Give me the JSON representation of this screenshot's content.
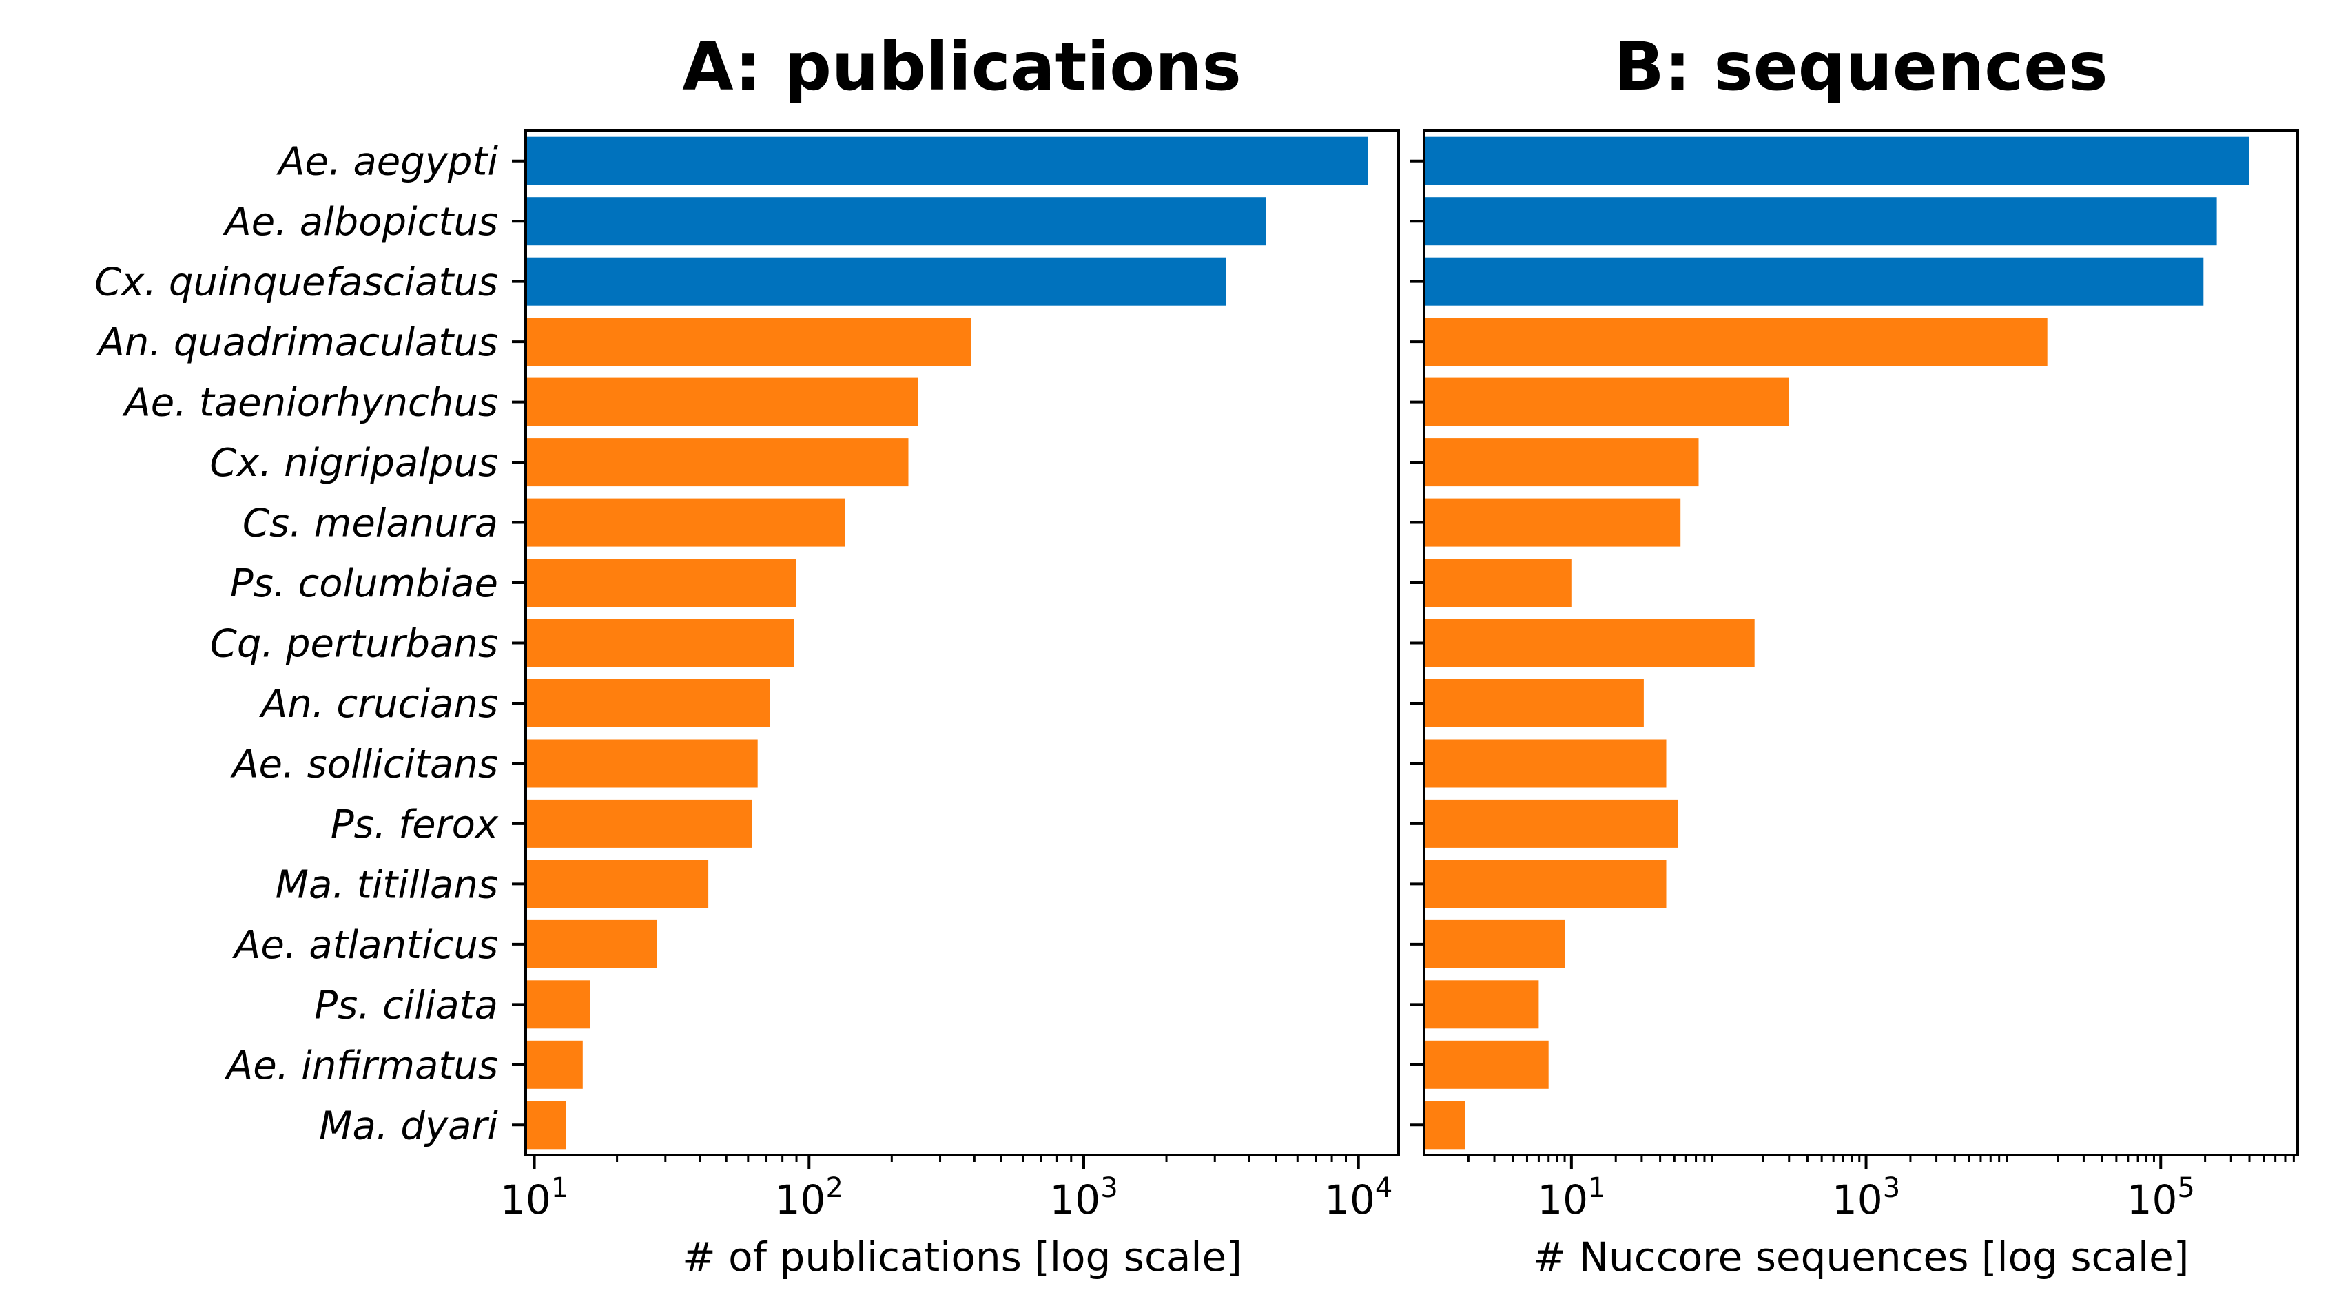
{
  "chart_data": [
    {
      "type": "bar",
      "orientation": "horizontal",
      "title": "A: publications",
      "xlabel": "# of publications [log scale]",
      "ylabel": "",
      "xscale": "log",
      "xlim": [
        9.3,
        14000
      ],
      "xticks": [
        {
          "value": 10,
          "base": "10",
          "exp": "1"
        },
        {
          "value": 100,
          "base": "10",
          "exp": "2"
        },
        {
          "value": 1000,
          "base": "10",
          "exp": "3"
        },
        {
          "value": 10000,
          "base": "10",
          "exp": "4"
        }
      ],
      "categories": [
        "Ae. aegypti",
        "Ae. albopictus",
        "Cx. quinquefasciatus",
        "An. quadrimaculatus",
        "Ae. taeniorhynchus",
        "Cx. nigripalpus",
        "Cs. melanura",
        "Ps. columbiae",
        "Cq. perturbans",
        "An. crucians",
        "Ae. sollicitans",
        "Ps. ferox",
        "Ma. titillans",
        "Ae. atlanticus",
        "Ps. ciliata",
        "Ae. infirmatus",
        "Ma. dyari"
      ],
      "values": [
        10800,
        4600,
        3300,
        390,
        250,
        230,
        135,
        90,
        88,
        72,
        65,
        62,
        43,
        28,
        16,
        15,
        13
      ],
      "colors": [
        "#0072bd",
        "#0072bd",
        "#0072bd",
        "#ff7f0e",
        "#ff7f0e",
        "#ff7f0e",
        "#ff7f0e",
        "#ff7f0e",
        "#ff7f0e",
        "#ff7f0e",
        "#ff7f0e",
        "#ff7f0e",
        "#ff7f0e",
        "#ff7f0e",
        "#ff7f0e",
        "#ff7f0e",
        "#ff7f0e"
      ],
      "show_category_labels": true,
      "grid": false
    },
    {
      "type": "bar",
      "orientation": "horizontal",
      "title": "B: sequences",
      "xlabel": "# Nuccore sequences [log scale]",
      "ylabel": "",
      "xscale": "log",
      "xlim": [
        1,
        850000
      ],
      "xticks": [
        {
          "value": 10,
          "base": "10",
          "exp": "1"
        },
        {
          "value": 1000,
          "base": "10",
          "exp": "3"
        },
        {
          "value": 100000,
          "base": "10",
          "exp": "5"
        }
      ],
      "categories": [
        "Ae. aegypti",
        "Ae. albopictus",
        "Cx. quinquefasciatus",
        "An. quadrimaculatus",
        "Ae. taeniorhynchus",
        "Cx. nigripalpus",
        "Cs. melanura",
        "Ps. columbiae",
        "Cq. perturbans",
        "An. crucians",
        "Ae. sollicitans",
        "Ps. ferox",
        "Ma. titillans",
        "Ae. atlanticus",
        "Ps. ciliata",
        "Ae. infirmatus",
        "Ma. dyari"
      ],
      "values": [
        400000,
        240000,
        195000,
        17000,
        300,
        73,
        55,
        10,
        175,
        31,
        44,
        53,
        44,
        9,
        6,
        7,
        1.9
      ],
      "colors": [
        "#0072bd",
        "#0072bd",
        "#0072bd",
        "#ff7f0e",
        "#ff7f0e",
        "#ff7f0e",
        "#ff7f0e",
        "#ff7f0e",
        "#ff7f0e",
        "#ff7f0e",
        "#ff7f0e",
        "#ff7f0e",
        "#ff7f0e",
        "#ff7f0e",
        "#ff7f0e",
        "#ff7f0e",
        "#ff7f0e"
      ],
      "show_category_labels": false,
      "grid": false
    }
  ]
}
